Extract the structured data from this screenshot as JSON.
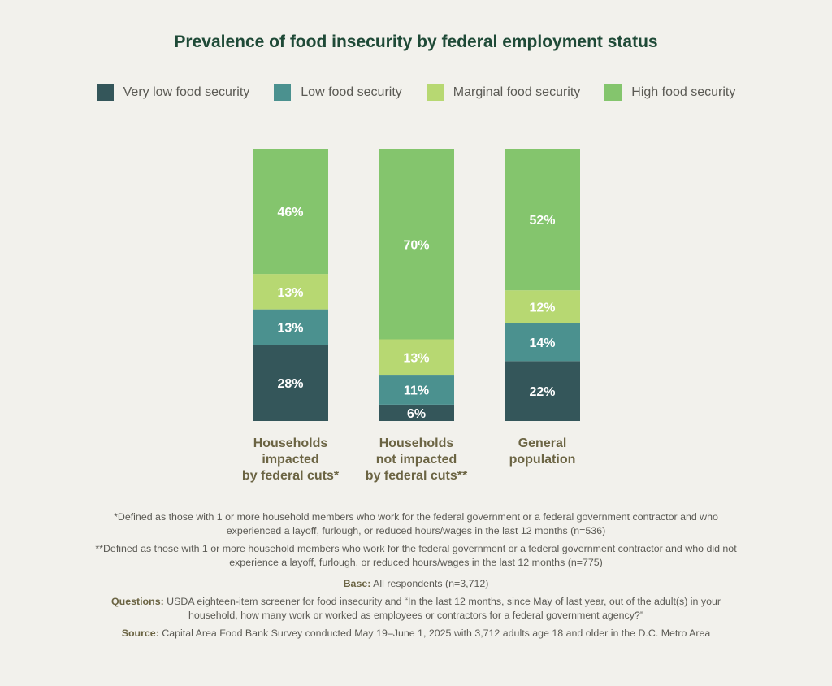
{
  "title": "Prevalence of food insecurity by federal employment status",
  "colors": {
    "very_low": "#34565a",
    "low": "#4b918f",
    "marginal": "#b7d872",
    "high": "#84c56d",
    "category_label": "#6b6443"
  },
  "chart_data": {
    "type": "bar",
    "stacked": true,
    "orientation": "vertical",
    "ylim": [
      0,
      100
    ],
    "categories": [
      [
        "Households",
        "impacted",
        "by federal cuts*"
      ],
      [
        "Households",
        "not impacted",
        "by federal cuts**"
      ],
      [
        "General",
        "population"
      ]
    ],
    "series": [
      {
        "name": "Very low food security",
        "color": "#34565a",
        "values": [
          28,
          6,
          22
        ],
        "labels": [
          "28%",
          "6%",
          "22%"
        ]
      },
      {
        "name": "Low food security",
        "color": "#4b918f",
        "values": [
          13,
          11,
          14
        ],
        "labels": [
          "13%",
          "11%",
          "14%"
        ]
      },
      {
        "name": "Marginal food security",
        "color": "#b7d872",
        "values": [
          13,
          13,
          12
        ],
        "labels": [
          "13%",
          "13%",
          "12%"
        ]
      },
      {
        "name": "High food security",
        "color": "#84c56d",
        "values": [
          46,
          70,
          52
        ],
        "labels": [
          "46%",
          "70%",
          "52%"
        ]
      }
    ],
    "legend": "top"
  },
  "notes": {
    "note1": "*Defined as those with 1 or more household members who work for the federal government or a federal government contractor and who experienced a layoff, furlough, or reduced hours/wages in the last 12 months (n=536)",
    "note2": "**Defined as those with 1 or more household members who work for the federal government or a federal government contractor and who did not experience a layoff, furlough, or reduced hours/wages in the last 12 months (n=775)",
    "base_label": "Base:",
    "base_text": "All respondents (n=3,712)",
    "questions_label": "Questions:",
    "questions_text": "USDA eighteen-item screener for food insecurity and “In the last 12 months, since May of last year, out of the adult(s) in your household, how many work or worked as employees or contractors for a federal government agency?”",
    "source_label": "Source:",
    "source_text": "Capital Area Food Bank Survey conducted May 19–June 1, 2025 with 3,712 adults age 18 and older in the D.C. Metro Area"
  }
}
